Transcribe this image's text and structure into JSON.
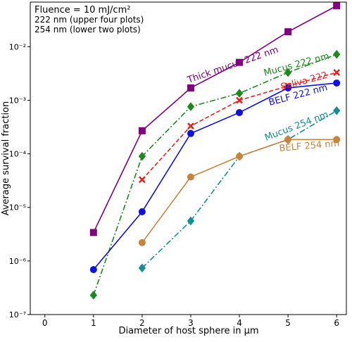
{
  "chart_data": {
    "type": "line",
    "notes": [
      "Fluence = 10 mJ/cm²",
      "222 nm (upper four plots)",
      "254 nm (lower two plots)"
    ],
    "xlabel": "Diameter of host sphere in μm",
    "ylabel": "Average survival fraction",
    "xlim": [
      -0.3,
      6.2
    ],
    "xticks": [
      0,
      1,
      2,
      3,
      4,
      5,
      6
    ],
    "ylim": [
      1e-07,
      0.068
    ],
    "log_y": true,
    "yticks": [
      {
        "value": 1e-07,
        "label": "10⁻⁷"
      },
      {
        "value": 1e-06,
        "label": "10⁻⁶"
      },
      {
        "value": 1e-05,
        "label": "10⁻⁵"
      },
      {
        "value": 0.0001,
        "label": "10⁻⁴"
      },
      {
        "value": 0.001,
        "label": "10⁻³"
      },
      {
        "value": 0.01,
        "label": "10⁻²"
      }
    ],
    "series": [
      {
        "name": "Thick mucus 222 nm",
        "color": "#800080",
        "marker": "square",
        "dash": "solid",
        "x": [
          1,
          2,
          3,
          4,
          5,
          6
        ],
        "values": [
          3.4e-06,
          0.00027,
          0.0017,
          0.0051,
          0.019,
          0.058
        ]
      },
      {
        "name": "Mucus 222 nm",
        "color": "#1a8a1a",
        "marker": "diamond",
        "dash": "dashdot",
        "x": [
          1,
          2,
          3,
          4,
          5,
          6
        ],
        "values": [
          2.3e-07,
          9e-05,
          0.00076,
          0.00135,
          0.0033,
          0.0072
        ]
      },
      {
        "name": "Saliva 222",
        "color": "#e8201c",
        "marker": "x",
        "dash": "dashed",
        "x": [
          2,
          3,
          4,
          5,
          6
        ],
        "values": [
          3.3e-05,
          0.00033,
          0.001,
          0.00185,
          0.0033
        ]
      },
      {
        "name": "BELF 222 nm",
        "color": "#1010e0",
        "marker": "circle",
        "dash": "solid",
        "x": [
          1,
          2,
          3,
          4,
          5,
          6
        ],
        "values": [
          6.9e-07,
          8.3e-06,
          0.00024,
          0.00059,
          0.0017,
          0.0021
        ]
      },
      {
        "name": "Mucus 254 nm",
        "color": "#109090",
        "marker": "diamond",
        "dash": "dashdot",
        "x": [
          2,
          3,
          4,
          5,
          6
        ],
        "values": [
          7.4e-07,
          5.6e-06,
          9e-05,
          0.000185,
          0.00064
        ]
      },
      {
        "name": "BELF 254 nm",
        "color": "#c8843c",
        "marker": "circle",
        "dash": "solid",
        "x": [
          2,
          3,
          4,
          5,
          6
        ],
        "values": [
          2.2e-06,
          3.7e-05,
          9e-05,
          0.000185,
          0.000185
        ]
      }
    ]
  }
}
